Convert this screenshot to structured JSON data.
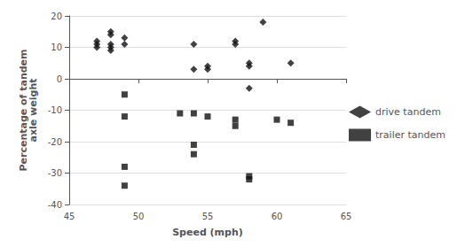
{
  "chart_data": {
    "type": "scatter",
    "xlabel": "Speed (mph)",
    "ylabel": "Percentage of tandem\naxle weight",
    "xlim": [
      45,
      65
    ],
    "ylim": [
      -40,
      20
    ],
    "xticks": [
      45,
      50,
      55,
      60,
      65
    ],
    "yticks": [
      -40,
      -30,
      -20,
      -10,
      0,
      10,
      20
    ],
    "grid": "y",
    "legend": "right",
    "series": [
      {
        "name": "drive tandem",
        "color": "#111111",
        "marker": "diamond",
        "x": [
          47,
          47,
          47,
          48,
          48,
          48,
          48,
          48,
          49,
          49,
          54,
          54,
          55,
          55,
          57,
          57,
          58,
          58,
          58,
          59,
          61
        ],
        "values": [
          10,
          11,
          12,
          14,
          15,
          10,
          11,
          9,
          11,
          13,
          11,
          3,
          3,
          4,
          11,
          12,
          5,
          4,
          -3,
          18,
          5
        ]
      },
      {
        "name": "trailer tandem",
        "color": "#111111",
        "marker": "square",
        "x": [
          49,
          49,
          49,
          49,
          53,
          54,
          54,
          54,
          55,
          57,
          57,
          58,
          58,
          60,
          61
        ],
        "values": [
          -5,
          -12,
          -28,
          -34,
          -11,
          -11,
          -21,
          -24,
          -12,
          -13,
          -15,
          -31,
          -32,
          -13,
          -14
        ]
      }
    ]
  }
}
